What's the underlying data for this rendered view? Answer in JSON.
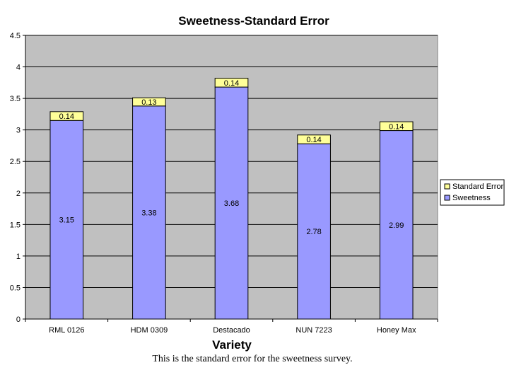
{
  "chart_data": {
    "type": "bar",
    "stacked": true,
    "title": "Sweetness-Standard Error",
    "xlabel": "Variety",
    "ylabel": "",
    "ylim": [
      0,
      4.5
    ],
    "yticks": [
      "0",
      "0.5",
      "1",
      "1.5",
      "2",
      "2.5",
      "3",
      "3.5",
      "4",
      "4.5"
    ],
    "categories": [
      "RML 0126",
      "HDM 0309",
      "Destacado",
      "NUN 7223",
      "Honey Max"
    ],
    "series": [
      {
        "name": "Sweetness",
        "values": [
          3.15,
          3.38,
          3.68,
          2.78,
          2.99
        ],
        "labels": [
          "3.15",
          "3.38",
          "3.68",
          "2.78",
          "2.99"
        ],
        "color": "#9999ff"
      },
      {
        "name": "Standard Error",
        "values": [
          0.14,
          0.13,
          0.14,
          0.14,
          0.14
        ],
        "labels": [
          "0.14",
          "0.13",
          "0.14",
          "0.14",
          "0.14"
        ],
        "color": "#ffff99"
      }
    ],
    "legend": {
      "placement": "right",
      "entries": [
        "Standard Error",
        "Sweetness"
      ]
    },
    "grid": true,
    "plot_background": "#c0c0c0"
  },
  "caption": "This is the standard error for the sweetness survey."
}
